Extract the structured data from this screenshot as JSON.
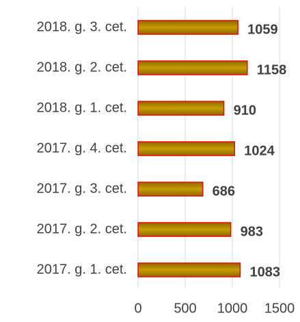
{
  "chart_data": {
    "type": "bar",
    "orientation": "horizontal",
    "categories": [
      "2018. g. 3. cet.",
      "2018. g. 2. cet.",
      "2018. g. 1. cet.",
      "2017. g. 4. cet.",
      "2017. g. 3. cet.",
      "2017. g. 2. cet.",
      "2017. g. 1. cet."
    ],
    "values": [
      1059,
      1158,
      910,
      1024,
      686,
      983,
      1083
    ],
    "color": "#c89b00",
    "edgecolor": "#ff0000",
    "xlim": [
      0,
      1500
    ],
    "xticks": [
      0,
      500,
      1000,
      1500
    ],
    "grid": true
  }
}
